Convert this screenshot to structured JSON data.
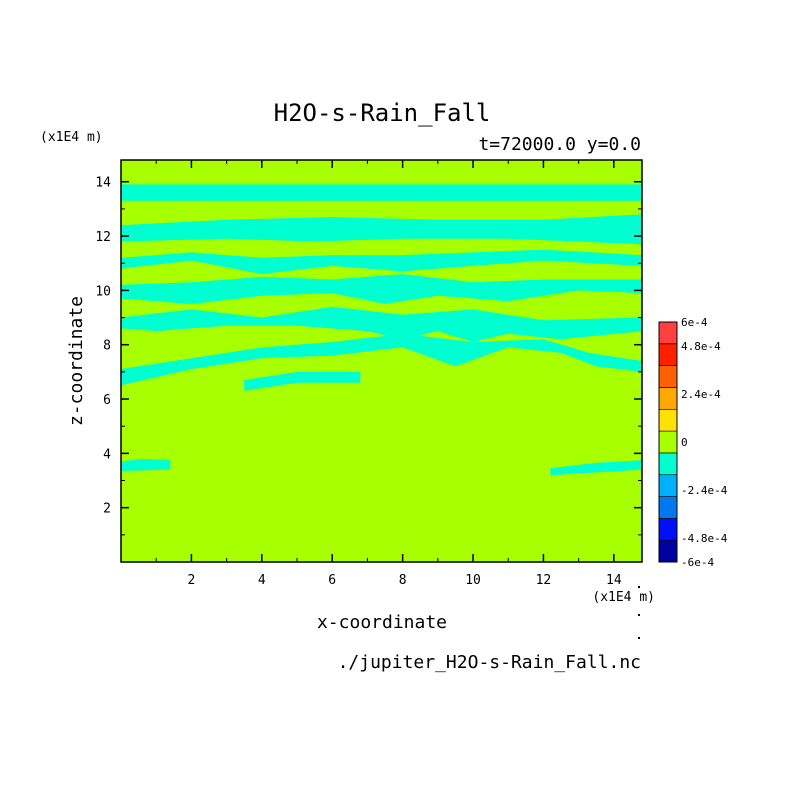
{
  "chart_data": {
    "type": "heatmap",
    "title": "H2O-s-Rain_Fall",
    "subtitle": "t=72000.0 y=0.0",
    "xlabel": "x-coordinate",
    "ylabel": "z-coordinate",
    "x_unit": "(x1E4 m)",
    "z_unit": "(x1E4 m)",
    "xlim": [
      0,
      14.8
    ],
    "ylim": [
      0,
      14.8
    ],
    "x_ticks": [
      2,
      4,
      6,
      8,
      10,
      12,
      14
    ],
    "y_ticks": [
      2,
      4,
      6,
      8,
      10,
      12,
      14
    ],
    "background_value": 0,
    "colorbar": {
      "levels": [
        -0.0006,
        -0.00048,
        -0.00036,
        -0.00024,
        -0.00012,
        0,
        0.00012,
        0.00024,
        0.00036,
        0.00048,
        0.0006
      ],
      "colors": [
        "#0000a0",
        "#0010ff",
        "#0078f0",
        "#00b0ff",
        "#00ffd0",
        "#a8ff00",
        "#ffe000",
        "#ffa800",
        "#ff6000",
        "#ff2000",
        "#ff4040"
      ],
      "labels": [
        {
          "level": 0.0006,
          "text": "6e-4"
        },
        {
          "level": 0.00048,
          "text": "4.8e-4"
        },
        {
          "level": 0.00024,
          "text": "2.4e-4"
        },
        {
          "level": 0,
          "text": "0"
        },
        {
          "level": -0.00024,
          "text": "-2.4e-4"
        },
        {
          "level": -0.00048,
          "text": "-4.8e-4"
        },
        {
          "level": -0.0006,
          "text": "-6e-4"
        }
      ]
    },
    "negative_bands": [
      {
        "value": -0.00012,
        "points": [
          [
            0,
            13.3
          ],
          [
            14.8,
            13.3
          ],
          [
            14.8,
            13.9
          ],
          [
            0,
            13.9
          ]
        ]
      },
      {
        "value": -0.00012,
        "points": [
          [
            0,
            11.8
          ],
          [
            3,
            11.9
          ],
          [
            5.5,
            11.8
          ],
          [
            8,
            11.9
          ],
          [
            11,
            11.9
          ],
          [
            14.8,
            11.7
          ],
          [
            14.8,
            12.8
          ],
          [
            12,
            12.6
          ],
          [
            9,
            12.6
          ],
          [
            6,
            12.7
          ],
          [
            3,
            12.6
          ],
          [
            0,
            12.4
          ]
        ]
      },
      {
        "value": -0.00012,
        "points": [
          [
            0,
            10.8
          ],
          [
            2,
            11.1
          ],
          [
            4,
            10.6
          ],
          [
            6,
            10.9
          ],
          [
            8,
            10.7
          ],
          [
            10,
            10.9
          ],
          [
            12,
            11.1
          ],
          [
            14.8,
            10.9
          ],
          [
            14.8,
            11.3
          ],
          [
            12,
            11.5
          ],
          [
            10,
            11.4
          ],
          [
            8,
            11.3
          ],
          [
            6,
            11.3
          ],
          [
            4,
            11.2
          ],
          [
            2,
            11.4
          ],
          [
            0,
            11.2
          ]
        ]
      },
      {
        "value": -0.00012,
        "points": [
          [
            0,
            9.7
          ],
          [
            2,
            9.5
          ],
          [
            4,
            9.8
          ],
          [
            6,
            9.9
          ],
          [
            7.5,
            9.5
          ],
          [
            9,
            9.8
          ],
          [
            11,
            9.6
          ],
          [
            13,
            10.0
          ],
          [
            14.8,
            9.9
          ],
          [
            14.8,
            10.4
          ],
          [
            12,
            10.4
          ],
          [
            10,
            10.3
          ],
          [
            8,
            10.6
          ],
          [
            6,
            10.4
          ],
          [
            4,
            10.5
          ],
          [
            2,
            10.3
          ],
          [
            0,
            10.2
          ]
        ]
      },
      {
        "value": -0.00012,
        "points": [
          [
            0,
            8.6
          ],
          [
            1,
            8.5
          ],
          [
            3,
            8.7
          ],
          [
            5,
            8.7
          ],
          [
            7,
            8.5
          ],
          [
            8,
            8.2
          ],
          [
            9,
            8.5
          ],
          [
            10,
            8.1
          ],
          [
            11,
            8.4
          ],
          [
            12.5,
            8.2
          ],
          [
            14.8,
            8.5
          ],
          [
            14.8,
            9.0
          ],
          [
            12,
            8.9
          ],
          [
            10,
            9.3
          ],
          [
            8,
            9.1
          ],
          [
            6,
            9.4
          ],
          [
            4,
            9.0
          ],
          [
            2,
            9.3
          ],
          [
            0,
            9.0
          ]
        ]
      },
      {
        "value": -0.00012,
        "points": [
          [
            0,
            6.5
          ],
          [
            2,
            7.1
          ],
          [
            4,
            7.5
          ],
          [
            6,
            7.6
          ],
          [
            8,
            7.9
          ],
          [
            9.5,
            7.2
          ],
          [
            11,
            7.9
          ],
          [
            12.5,
            7.7
          ],
          [
            13.5,
            7.2
          ],
          [
            14.8,
            7.0
          ],
          [
            14.8,
            7.4
          ],
          [
            13.3,
            7.7
          ],
          [
            12,
            8.2
          ],
          [
            10,
            8.1
          ],
          [
            8,
            8.4
          ],
          [
            6,
            8.1
          ],
          [
            4,
            7.9
          ],
          [
            2,
            7.5
          ],
          [
            0,
            7.1
          ]
        ]
      },
      {
        "value": -0.00012,
        "points": [
          [
            3.5,
            6.3
          ],
          [
            5,
            6.6
          ],
          [
            6.8,
            6.6
          ],
          [
            6.8,
            7.0
          ],
          [
            5,
            7.0
          ],
          [
            3.5,
            6.7
          ]
        ]
      },
      {
        "value": -0.00012,
        "points": [
          [
            0,
            3.35
          ],
          [
            1.4,
            3.4
          ],
          [
            1.4,
            3.75
          ],
          [
            0.6,
            3.8
          ],
          [
            0,
            3.7
          ]
        ]
      },
      {
        "value": -0.00012,
        "points": [
          [
            12.2,
            3.2
          ],
          [
            14.8,
            3.4
          ],
          [
            14.8,
            3.75
          ],
          [
            13.5,
            3.65
          ],
          [
            12.2,
            3.45
          ]
        ]
      }
    ]
  },
  "footer": {
    "filename": "./jupiter_H2O-s-Rain_Fall.nc"
  }
}
